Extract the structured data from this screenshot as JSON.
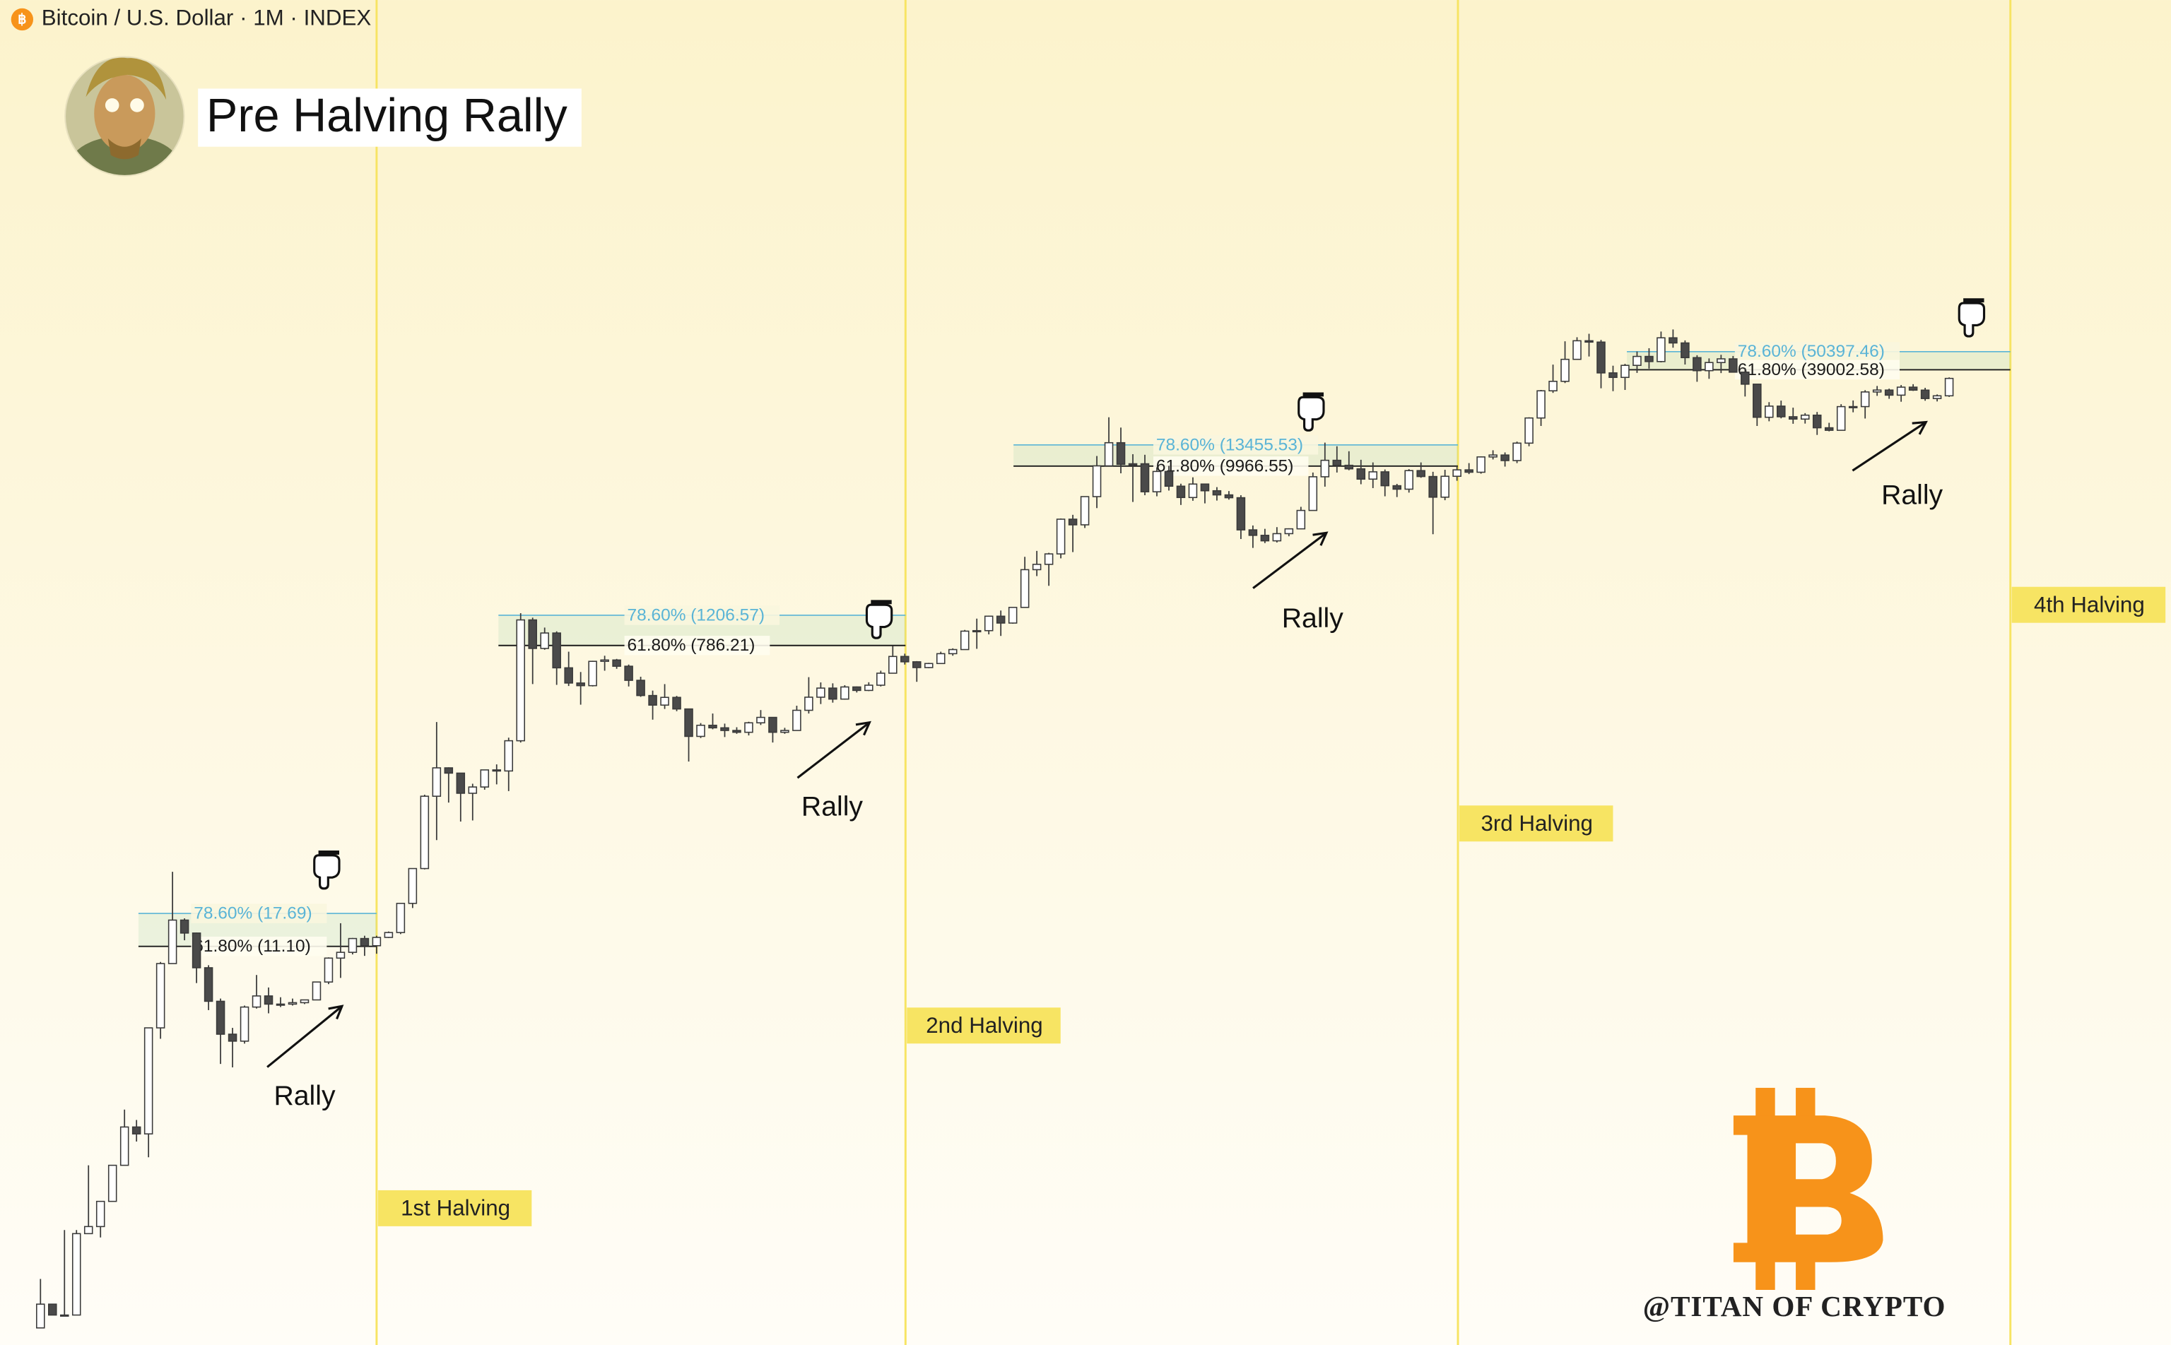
{
  "chart_data": {
    "type": "candlestick",
    "symbol": "Bitcoin / U.S. Dollar · 1M · INDEX",
    "title": "Pre Halving Rally",
    "log_scale": true,
    "up_color": "#ffffff",
    "down_color": "#4a4a4a",
    "outline_color": "#3a3a3a",
    "candles": [
      [
        0.05,
        0.1,
        0.05,
        0.07
      ],
      [
        0.07,
        0.07,
        0.06,
        0.06
      ],
      [
        0.06,
        0.2,
        0.06,
        0.06
      ],
      [
        0.06,
        0.2,
        0.06,
        0.19
      ],
      [
        0.19,
        0.5,
        0.2,
        0.21
      ],
      [
        0.21,
        0.3,
        0.18,
        0.3
      ],
      [
        0.3,
        0.5,
        0.3,
        0.5
      ],
      [
        0.5,
        1.1,
        0.5,
        0.86
      ],
      [
        0.86,
        0.95,
        0.7,
        0.78
      ],
      [
        0.78,
        3.5,
        0.56,
        3.5
      ],
      [
        3.5,
        8.9,
        3,
        8.7
      ],
      [
        8.7,
        31.9,
        8.7,
        16.1
      ],
      [
        16.1,
        16.5,
        12.1,
        13.4
      ],
      [
        13.4,
        13.5,
        6.6,
        8.2
      ],
      [
        8.2,
        8.5,
        4.5,
        5.1
      ],
      [
        5.1,
        5.3,
        2.1,
        3.2
      ],
      [
        3.2,
        3.5,
        2,
        2.9
      ],
      [
        2.9,
        4.8,
        2.8,
        4.7
      ],
      [
        4.7,
        7.4,
        4.6,
        5.5
      ],
      [
        5.5,
        6.2,
        4.3,
        4.9
      ],
      [
        4.9,
        5.4,
        4.7,
        4.9
      ],
      [
        4.9,
        5.3,
        4.8,
        5.0
      ],
      [
        5.0,
        5.2,
        4.9,
        5.2
      ],
      [
        5.2,
        6.7,
        5.2,
        6.7
      ],
      [
        6.7,
        9.5,
        6.5,
        9.4
      ],
      [
        9.4,
        15.4,
        7.1,
        10.2
      ],
      [
        10.2,
        12.5,
        9.9,
        12.4
      ],
      [
        12.4,
        12.9,
        9.7,
        11.2
      ],
      [
        11.2,
        12.9,
        10.0,
        12.6
      ],
      [
        12.6,
        13.7,
        12.5,
        13.5
      ],
      [
        13.5,
        20.4,
        13.2,
        20.4
      ],
      [
        20.4,
        33.4,
        19.1,
        33.4
      ],
      [
        33.4,
        95,
        33,
        93
      ],
      [
        93,
        266,
        50,
        139
      ],
      [
        139,
        140,
        85,
        129
      ],
      [
        129,
        129,
        65,
        97
      ],
      [
        97,
        111,
        66,
        106
      ],
      [
        106,
        135,
        102,
        135
      ],
      [
        135,
        146,
        110,
        133
      ],
      [
        133,
        213,
        100,
        204
      ],
      [
        204,
        1242,
        199,
        1129
      ],
      [
        1129,
        1165,
        455,
        754
      ],
      [
        754,
        1013,
        740,
        938
      ],
      [
        938,
        960,
        450,
        573
      ],
      [
        573,
        720,
        443,
        462
      ],
      [
        462,
        540,
        340,
        445
      ],
      [
        445,
        633,
        440,
        628
      ],
      [
        628,
        680,
        550,
        640
      ],
      [
        640,
        650,
        565,
        586
      ],
      [
        586,
        600,
        440,
        480
      ],
      [
        480,
        505,
        380,
        387
      ],
      [
        387,
        415,
        275,
        338
      ],
      [
        338,
        455,
        320,
        377
      ],
      [
        377,
        385,
        310,
        320
      ],
      [
        320,
        320,
        152,
        217
      ],
      [
        217,
        262,
        212,
        254
      ],
      [
        254,
        300,
        240,
        245
      ],
      [
        245,
        260,
        215,
        236
      ],
      [
        236,
        247,
        225,
        230
      ],
      [
        230,
        267,
        220,
        263
      ],
      [
        263,
        315,
        255,
        284
      ],
      [
        284,
        285,
        199,
        230
      ],
      [
        230,
        245,
        225,
        236
      ],
      [
        236,
        335,
        236,
        314
      ],
      [
        314,
        502,
        300,
        378
      ],
      [
        378,
        466,
        343,
        430
      ],
      [
        430,
        460,
        350,
        368
      ],
      [
        368,
        448,
        365,
        437
      ],
      [
        437,
        440,
        404,
        416
      ],
      [
        416,
        467,
        412,
        448
      ],
      [
        448,
        550,
        440,
        531
      ],
      [
        531,
        780,
        530,
        673
      ],
      [
        673,
        700,
        600,
        624
      ],
      [
        624,
        630,
        470,
        575
      ],
      [
        575,
        615,
        570,
        609
      ],
      [
        609,
        720,
        605,
        700
      ],
      [
        700,
        755,
        680,
        742
      ],
      [
        742,
        980,
        740,
        963
      ],
      [
        963,
        1150,
        750,
        970
      ],
      [
        970,
        1200,
        920,
        1190
      ],
      [
        1190,
        1290,
        900,
        1080
      ],
      [
        1080,
        1350,
        1070,
        1348
      ],
      [
        1348,
        2760,
        1340,
        2300
      ],
      [
        2300,
        3000,
        2100,
        2480
      ],
      [
        2480,
        2920,
        1830,
        2875
      ],
      [
        2875,
        4750,
        2700,
        4700
      ],
      [
        4700,
        5000,
        2950,
        4340
      ],
      [
        4340,
        6470,
        4150,
        6470
      ],
      [
        6470,
        11500,
        5500,
        10000
      ],
      [
        10000,
        19900,
        10000,
        13880
      ],
      [
        13880,
        17200,
        9000,
        10220
      ],
      [
        10220,
        11800,
        6000,
        10300
      ],
      [
        10300,
        11700,
        6600,
        6930
      ],
      [
        6930,
        9800,
        6500,
        9240
      ],
      [
        9240,
        10000,
        7050,
        7500
      ],
      [
        7500,
        7770,
        5750,
        6390
      ],
      [
        6390,
        8500,
        6100,
        7730
      ],
      [
        7730,
        7760,
        5880,
        7030
      ],
      [
        7030,
        7400,
        6120,
        6630
      ],
      [
        6630,
        7000,
        6200,
        6370
      ],
      [
        6370,
        6600,
        3550,
        4040
      ],
      [
        4040,
        4300,
        3130,
        3740
      ],
      [
        3740,
        4100,
        3350,
        3460
      ],
      [
        3460,
        4200,
        3380,
        3830
      ],
      [
        3830,
        4130,
        3690,
        4100
      ],
      [
        4100,
        5600,
        4080,
        5320
      ],
      [
        5320,
        9100,
        5300,
        8570
      ],
      [
        8570,
        13900,
        7450,
        10820
      ],
      [
        10820,
        13200,
        9100,
        10080
      ],
      [
        10080,
        12300,
        9400,
        9590
      ],
      [
        9590,
        10900,
        7710,
        8290
      ],
      [
        8290,
        10500,
        7300,
        9190
      ],
      [
        9190,
        9500,
        6500,
        7550
      ],
      [
        7550,
        7750,
        6430,
        7190
      ],
      [
        7190,
        9550,
        6850,
        9350
      ],
      [
        9350,
        10500,
        8450,
        8600
      ],
      [
        8600,
        9200,
        3800,
        6420
      ],
      [
        6420,
        9460,
        6150,
        8630
      ],
      [
        8630,
        10070,
        8100,
        9450
      ],
      [
        9450,
        10400,
        8900,
        9140
      ],
      [
        9140,
        11450,
        8950,
        11350
      ],
      [
        11350,
        12470,
        10950,
        11660
      ],
      [
        11660,
        12100,
        9900,
        10780
      ],
      [
        10780,
        14100,
        10400,
        13800
      ],
      [
        13800,
        19900,
        13200,
        19700
      ],
      [
        19700,
        29300,
        17600,
        28950
      ],
      [
        28950,
        41950,
        28100,
        33100
      ],
      [
        33100,
        58350,
        32300,
        45200
      ],
      [
        45200,
        61800,
        44950,
        58800
      ],
      [
        58800,
        64900,
        47050,
        57700
      ],
      [
        57700,
        59500,
        30000,
        37300
      ],
      [
        37300,
        41300,
        28800,
        35000
      ],
      [
        35000,
        42400,
        29300,
        41500
      ],
      [
        41500,
        50500,
        37300,
        47100
      ],
      [
        47100,
        52900,
        39600,
        43800
      ],
      [
        43800,
        67000,
        43300,
        61300
      ],
      [
        61300,
        69000,
        53300,
        57000
      ],
      [
        57000,
        59100,
        42000,
        46300
      ],
      [
        46300,
        47900,
        32900,
        38500
      ],
      [
        38500,
        45800,
        34300,
        43200
      ],
      [
        43200,
        48200,
        37200,
        45500
      ],
      [
        45500,
        47400,
        37600,
        37700
      ],
      [
        37700,
        40000,
        26700,
        31800
      ],
      [
        31800,
        31900,
        17600,
        19900
      ],
      [
        19900,
        24650,
        18800,
        23300
      ],
      [
        23300,
        25200,
        19600,
        20050
      ],
      [
        20050,
        22800,
        18150,
        19400
      ],
      [
        19400,
        21100,
        18200,
        20500
      ],
      [
        20500,
        21450,
        15500,
        17150
      ],
      [
        17150,
        18400,
        16300,
        16550
      ],
      [
        16550,
        23950,
        16500,
        23140
      ],
      [
        23140,
        25250,
        21350,
        23150
      ],
      [
        23150,
        29200,
        19550,
        28480
      ],
      [
        28480,
        31000,
        26950,
        29250
      ],
      [
        29250,
        29850,
        25850,
        27220
      ],
      [
        27220,
        31400,
        24800,
        30480
      ],
      [
        30480,
        31800,
        28900,
        29230
      ],
      [
        29230,
        30200,
        25150,
        25950
      ],
      [
        25950,
        27500,
        24900,
        26970
      ],
      [
        26970,
        35000,
        26550,
        34500
      ]
    ],
    "fib_levels": [
      {
        "label": "78.60% (17.69)",
        "price": 17.69,
        "color": "#5ab4d6"
      },
      {
        "label": "61.80% (11.10)",
        "price": 11.1,
        "color": "#1a1a1a"
      },
      {
        "label": "78.60% (1206.57)",
        "price": 1206.57,
        "color": "#5ab4d6"
      },
      {
        "label": "61.80% (786.21)",
        "price": 786.21,
        "color": "#1a1a1a"
      },
      {
        "label": "78.60% (13455.53)",
        "price": 13455.53,
        "color": "#5ab4d6"
      },
      {
        "label": "61.80% (9966.55)",
        "price": 9966.55,
        "color": "#1a1a1a"
      },
      {
        "label": "78.60% (50397.46)",
        "price": 50397.46,
        "color": "#5ab4d6"
      },
      {
        "label": "61.80% (39002.58)",
        "price": 39002.58,
        "color": "#1a1a1a"
      }
    ],
    "halvings": [
      "1st Halving",
      "2nd Halving",
      "3rd Halving",
      "4th Halving"
    ],
    "halving_color": "#f7e463",
    "annotations": [
      "Rally",
      "Rally",
      "Rally",
      "Rally"
    ],
    "watermark": "@TITAN OF CRYPTO"
  }
}
